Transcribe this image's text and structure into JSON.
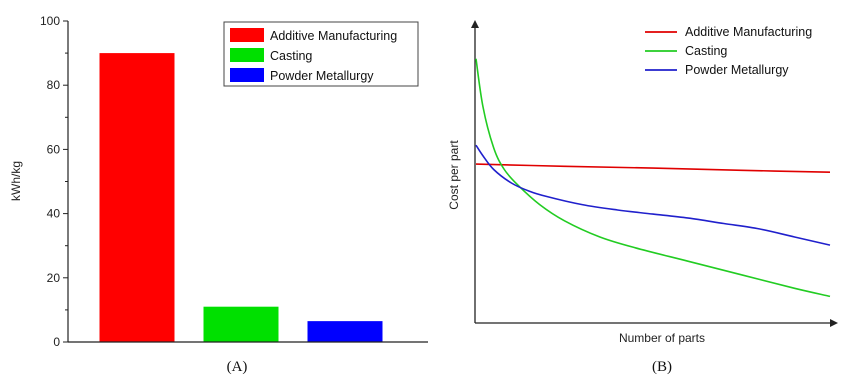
{
  "chart_data": [
    {
      "type": "bar",
      "panel_label": "(A)",
      "categories": [
        "Additive Manufacturing",
        "Casting",
        "Powder Metallurgy"
      ],
      "values": [
        90,
        11,
        6.5
      ],
      "colors": [
        "#ff0000",
        "#00e000",
        "#0000ff"
      ],
      "xlabel": "",
      "ylabel": "kWh/kg",
      "ylim": [
        0,
        100
      ],
      "yticks": [
        0,
        20,
        40,
        60,
        80,
        100
      ],
      "grid": false,
      "legend": {
        "position": "top-right",
        "entries": [
          "Additive Manufacturing",
          "Casting",
          "Powder Metallurgy"
        ]
      }
    },
    {
      "type": "line",
      "panel_label": "(B)",
      "xlabel": "Number of parts",
      "ylabel": "Cost per part",
      "xlim": [
        0,
        1
      ],
      "ylim": [
        0,
        1
      ],
      "grid": false,
      "axis_ticks": false,
      "legend": {
        "position": "top-right",
        "entries": [
          "Additive Manufacturing",
          "Casting",
          "Powder Metallurgy"
        ]
      },
      "series": [
        {
          "name": "Additive Manufacturing",
          "color": "#e00000",
          "x": [
            0.0,
            0.25,
            0.5,
            0.75,
            1.0
          ],
          "y": [
            0.57,
            0.562,
            0.555,
            0.547,
            0.54
          ]
        },
        {
          "name": "Casting",
          "color": "#22cc22",
          "x": [
            0.0,
            0.02,
            0.05,
            0.08,
            0.12,
            0.18,
            0.25,
            0.35,
            0.45,
            0.6,
            0.75,
            0.9,
            1.0
          ],
          "y": [
            0.96,
            0.78,
            0.63,
            0.55,
            0.49,
            0.42,
            0.36,
            0.3,
            0.26,
            0.21,
            0.16,
            0.11,
            0.08
          ]
        },
        {
          "name": "Powder Metallurgy",
          "color": "#2020cc",
          "x": [
            0.0,
            0.02,
            0.05,
            0.1,
            0.15,
            0.2,
            0.3,
            0.4,
            0.5,
            0.6,
            0.7,
            0.8,
            0.9,
            1.0
          ],
          "y": [
            0.64,
            0.6,
            0.55,
            0.5,
            0.47,
            0.45,
            0.42,
            0.4,
            0.385,
            0.37,
            0.35,
            0.33,
            0.3,
            0.27
          ]
        }
      ]
    }
  ]
}
